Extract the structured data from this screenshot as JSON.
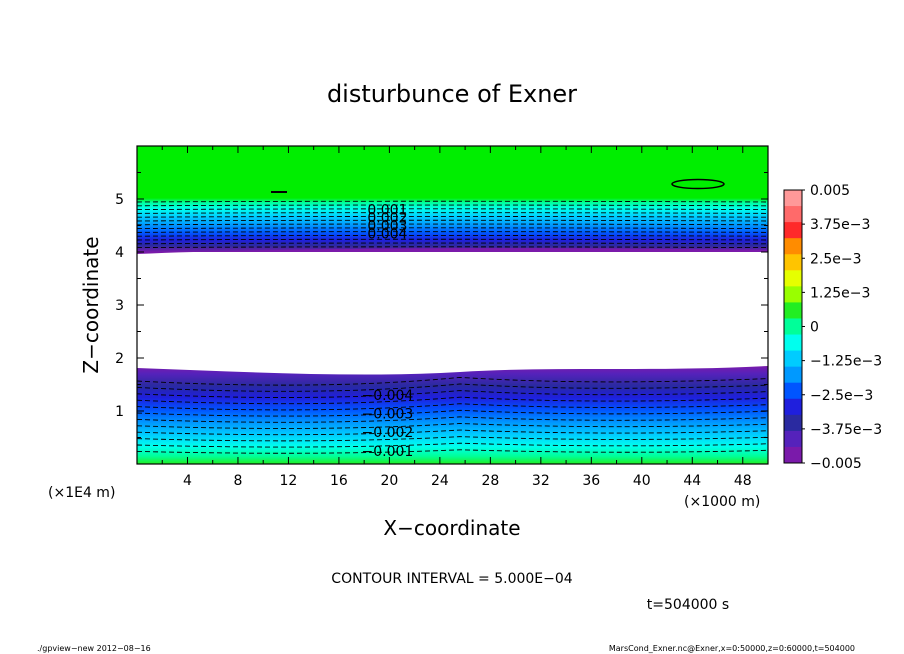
{
  "chart_data": {
    "type": "heatmap",
    "title": "disturbunce of Exner",
    "xlabel": "X−coordinate",
    "ylabel": "Z−coordinate",
    "x_unit": "(×1000 m)",
    "y_unit": "(×1E4 m)",
    "xlim": [
      0,
      50
    ],
    "ylim": [
      0,
      6
    ],
    "x_ticks": [
      "4",
      "8",
      "12",
      "16",
      "20",
      "24",
      "28",
      "32",
      "36",
      "40",
      "44",
      "48"
    ],
    "y_ticks": [
      "1",
      "2",
      "3",
      "4",
      "5"
    ],
    "contour_interval": "CONTOUR INTERVAL = 5.000E−04",
    "time_label": "t=504000 s",
    "colorbar": {
      "range": [
        -0.005,
        0.005
      ],
      "tick_labels": [
        "0.005",
        "3.75e−3",
        "2.5e−3",
        "1.25e−3",
        "0",
        "−1.25e−3",
        "−2.5e−3",
        "−3.75e−3",
        "−0.005"
      ],
      "colors": [
        "#ff9999",
        "#ff6a6a",
        "#ff2a2a",
        "#ff8c00",
        "#ffc400",
        "#e6ff00",
        "#99ff00",
        "#22ee22",
        "#00ff99",
        "#00ffee",
        "#00ccff",
        "#0099ff",
        "#0055ff",
        "#1f1fdd",
        "#2a2aa0",
        "#5522bb",
        "#7a1aaa"
      ]
    },
    "contour_labels": [
      {
        "text": "0.001",
        "x": 20,
        "z": 4.8
      },
      {
        "text": "0.002",
        "x": 20,
        "z": 4.65
      },
      {
        "text": "0.003",
        "x": 20,
        "z": 4.5
      },
      {
        "text": "0.004",
        "x": 20,
        "z": 4.35
      },
      {
        "text": "−0.004",
        "x": 20,
        "z": 1.3
      },
      {
        "text": "−0.003",
        "x": 20,
        "z": 0.95
      },
      {
        "text": "−0.002",
        "x": 20,
        "z": 0.6
      },
      {
        "text": "−0.001",
        "x": 20,
        "z": 0.25
      }
    ],
    "regions": {
      "upper_band_bottom_z": 4.0,
      "lower_band_top_z": 1.8,
      "top_value": 0
    }
  },
  "footer": {
    "left": "./gpview−new  2012−08−16",
    "right": "MarsCond_Exner.nc@Exner,x=0:50000,z=0:60000,t=504000"
  }
}
